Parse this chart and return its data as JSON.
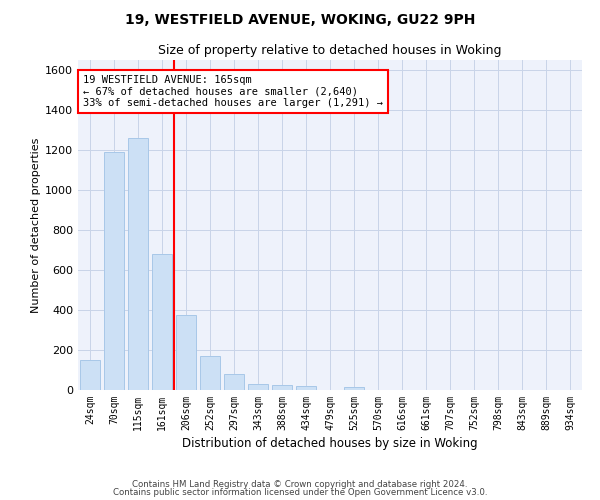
{
  "title1": "19, WESTFIELD AVENUE, WOKING, GU22 9PH",
  "title2": "Size of property relative to detached houses in Woking",
  "xlabel": "Distribution of detached houses by size in Woking",
  "ylabel": "Number of detached properties",
  "categories": [
    "24sqm",
    "70sqm",
    "115sqm",
    "161sqm",
    "206sqm",
    "252sqm",
    "297sqm",
    "343sqm",
    "388sqm",
    "434sqm",
    "479sqm",
    "525sqm",
    "570sqm",
    "616sqm",
    "661sqm",
    "707sqm",
    "752sqm",
    "798sqm",
    "843sqm",
    "889sqm",
    "934sqm"
  ],
  "values": [
    150,
    1190,
    1260,
    680,
    375,
    170,
    80,
    30,
    25,
    20,
    0,
    15,
    0,
    0,
    0,
    0,
    0,
    0,
    0,
    0,
    0
  ],
  "bar_color": "#cce0f5",
  "bar_edge_color": "#a8c8e8",
  "grid_color": "#c8d4e8",
  "background_color": "#eef2fb",
  "annotation_text": "19 WESTFIELD AVENUE: 165sqm\n← 67% of detached houses are smaller (2,640)\n33% of semi-detached houses are larger (1,291) →",
  "ylim": [
    0,
    1650
  ],
  "yticks": [
    0,
    200,
    400,
    600,
    800,
    1000,
    1200,
    1400,
    1600
  ],
  "footer1": "Contains HM Land Registry data © Crown copyright and database right 2024.",
  "footer2": "Contains public sector information licensed under the Open Government Licence v3.0."
}
